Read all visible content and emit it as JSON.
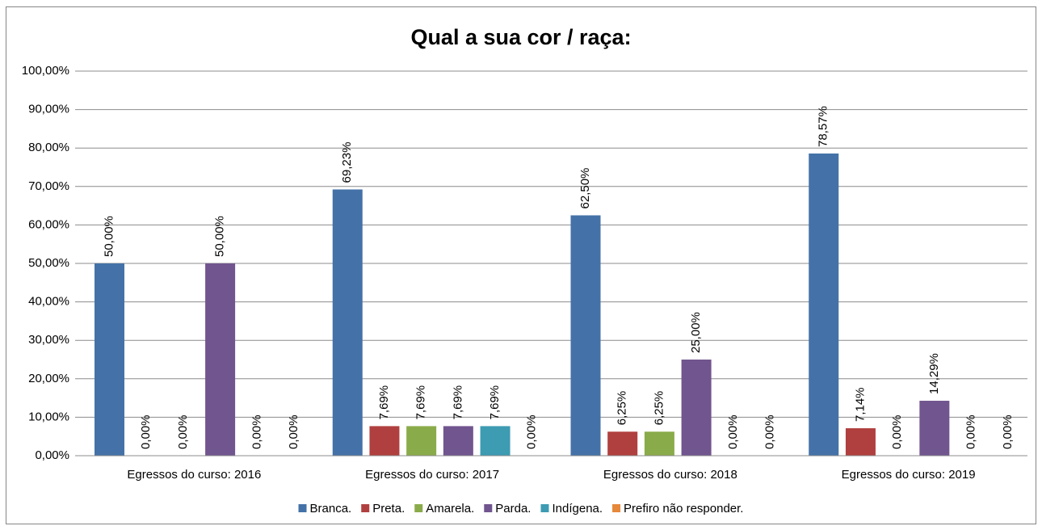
{
  "chart_data": {
    "type": "bar",
    "title": "Qual a sua cor / raça:",
    "categories": [
      "Egressos do curso: 2016",
      "Egressos do curso: 2017",
      "Egressos do curso: 2018",
      "Egressos do curso: 2019"
    ],
    "series": [
      {
        "name": "Branca.",
        "color": "#4472a8",
        "values": [
          50,
          69.23,
          62.5,
          78.57
        ],
        "value_labels": [
          "50,00%",
          "69,23%",
          "62,50%",
          "78,57%"
        ]
      },
      {
        "name": "Preta.",
        "color": "#b0403f",
        "values": [
          0,
          7.69,
          6.25,
          7.14
        ],
        "value_labels": [
          "0,00%",
          "7,69%",
          "6,25%",
          "7,14%"
        ]
      },
      {
        "name": "Amarela.",
        "color": "#8aab4a",
        "values": [
          0,
          7.69,
          6.25,
          0
        ],
        "value_labels": [
          "0,00%",
          "7,69%",
          "6,25%",
          "0,00%"
        ]
      },
      {
        "name": "Parda.",
        "color": "#71558f",
        "values": [
          50,
          7.69,
          25,
          14.29
        ],
        "value_labels": [
          "50,00%",
          "7,69%",
          "25,00%",
          "14,29%"
        ]
      },
      {
        "name": "Indígena.",
        "color": "#3d9bb2",
        "values": [
          0,
          7.69,
          0,
          0
        ],
        "value_labels": [
          "0,00%",
          "7,69%",
          "0,00%",
          "0,00%"
        ]
      },
      {
        "name": "Prefiro não responder.",
        "color": "#e5883a",
        "values": [
          0,
          0,
          0,
          0
        ],
        "value_labels": [
          "0,00%",
          "0,00%",
          "0,00%",
          "0,00%"
        ]
      }
    ],
    "ylim": [
      0,
      100
    ],
    "yticks": [
      {
        "value": 0,
        "label": "0,00%"
      },
      {
        "value": 10,
        "label": "10,00%"
      },
      {
        "value": 20,
        "label": "20,00%"
      },
      {
        "value": 30,
        "label": "30,00%"
      },
      {
        "value": 40,
        "label": "40,00%"
      },
      {
        "value": 50,
        "label": "50,00%"
      },
      {
        "value": 60,
        "label": "60,00%"
      },
      {
        "value": 70,
        "label": "70,00%"
      },
      {
        "value": 80,
        "label": "80,00%"
      },
      {
        "value": 90,
        "label": "90,00%"
      },
      {
        "value": 100,
        "label": "100,00%"
      }
    ],
    "grid": true,
    "legend": "bottom"
  }
}
